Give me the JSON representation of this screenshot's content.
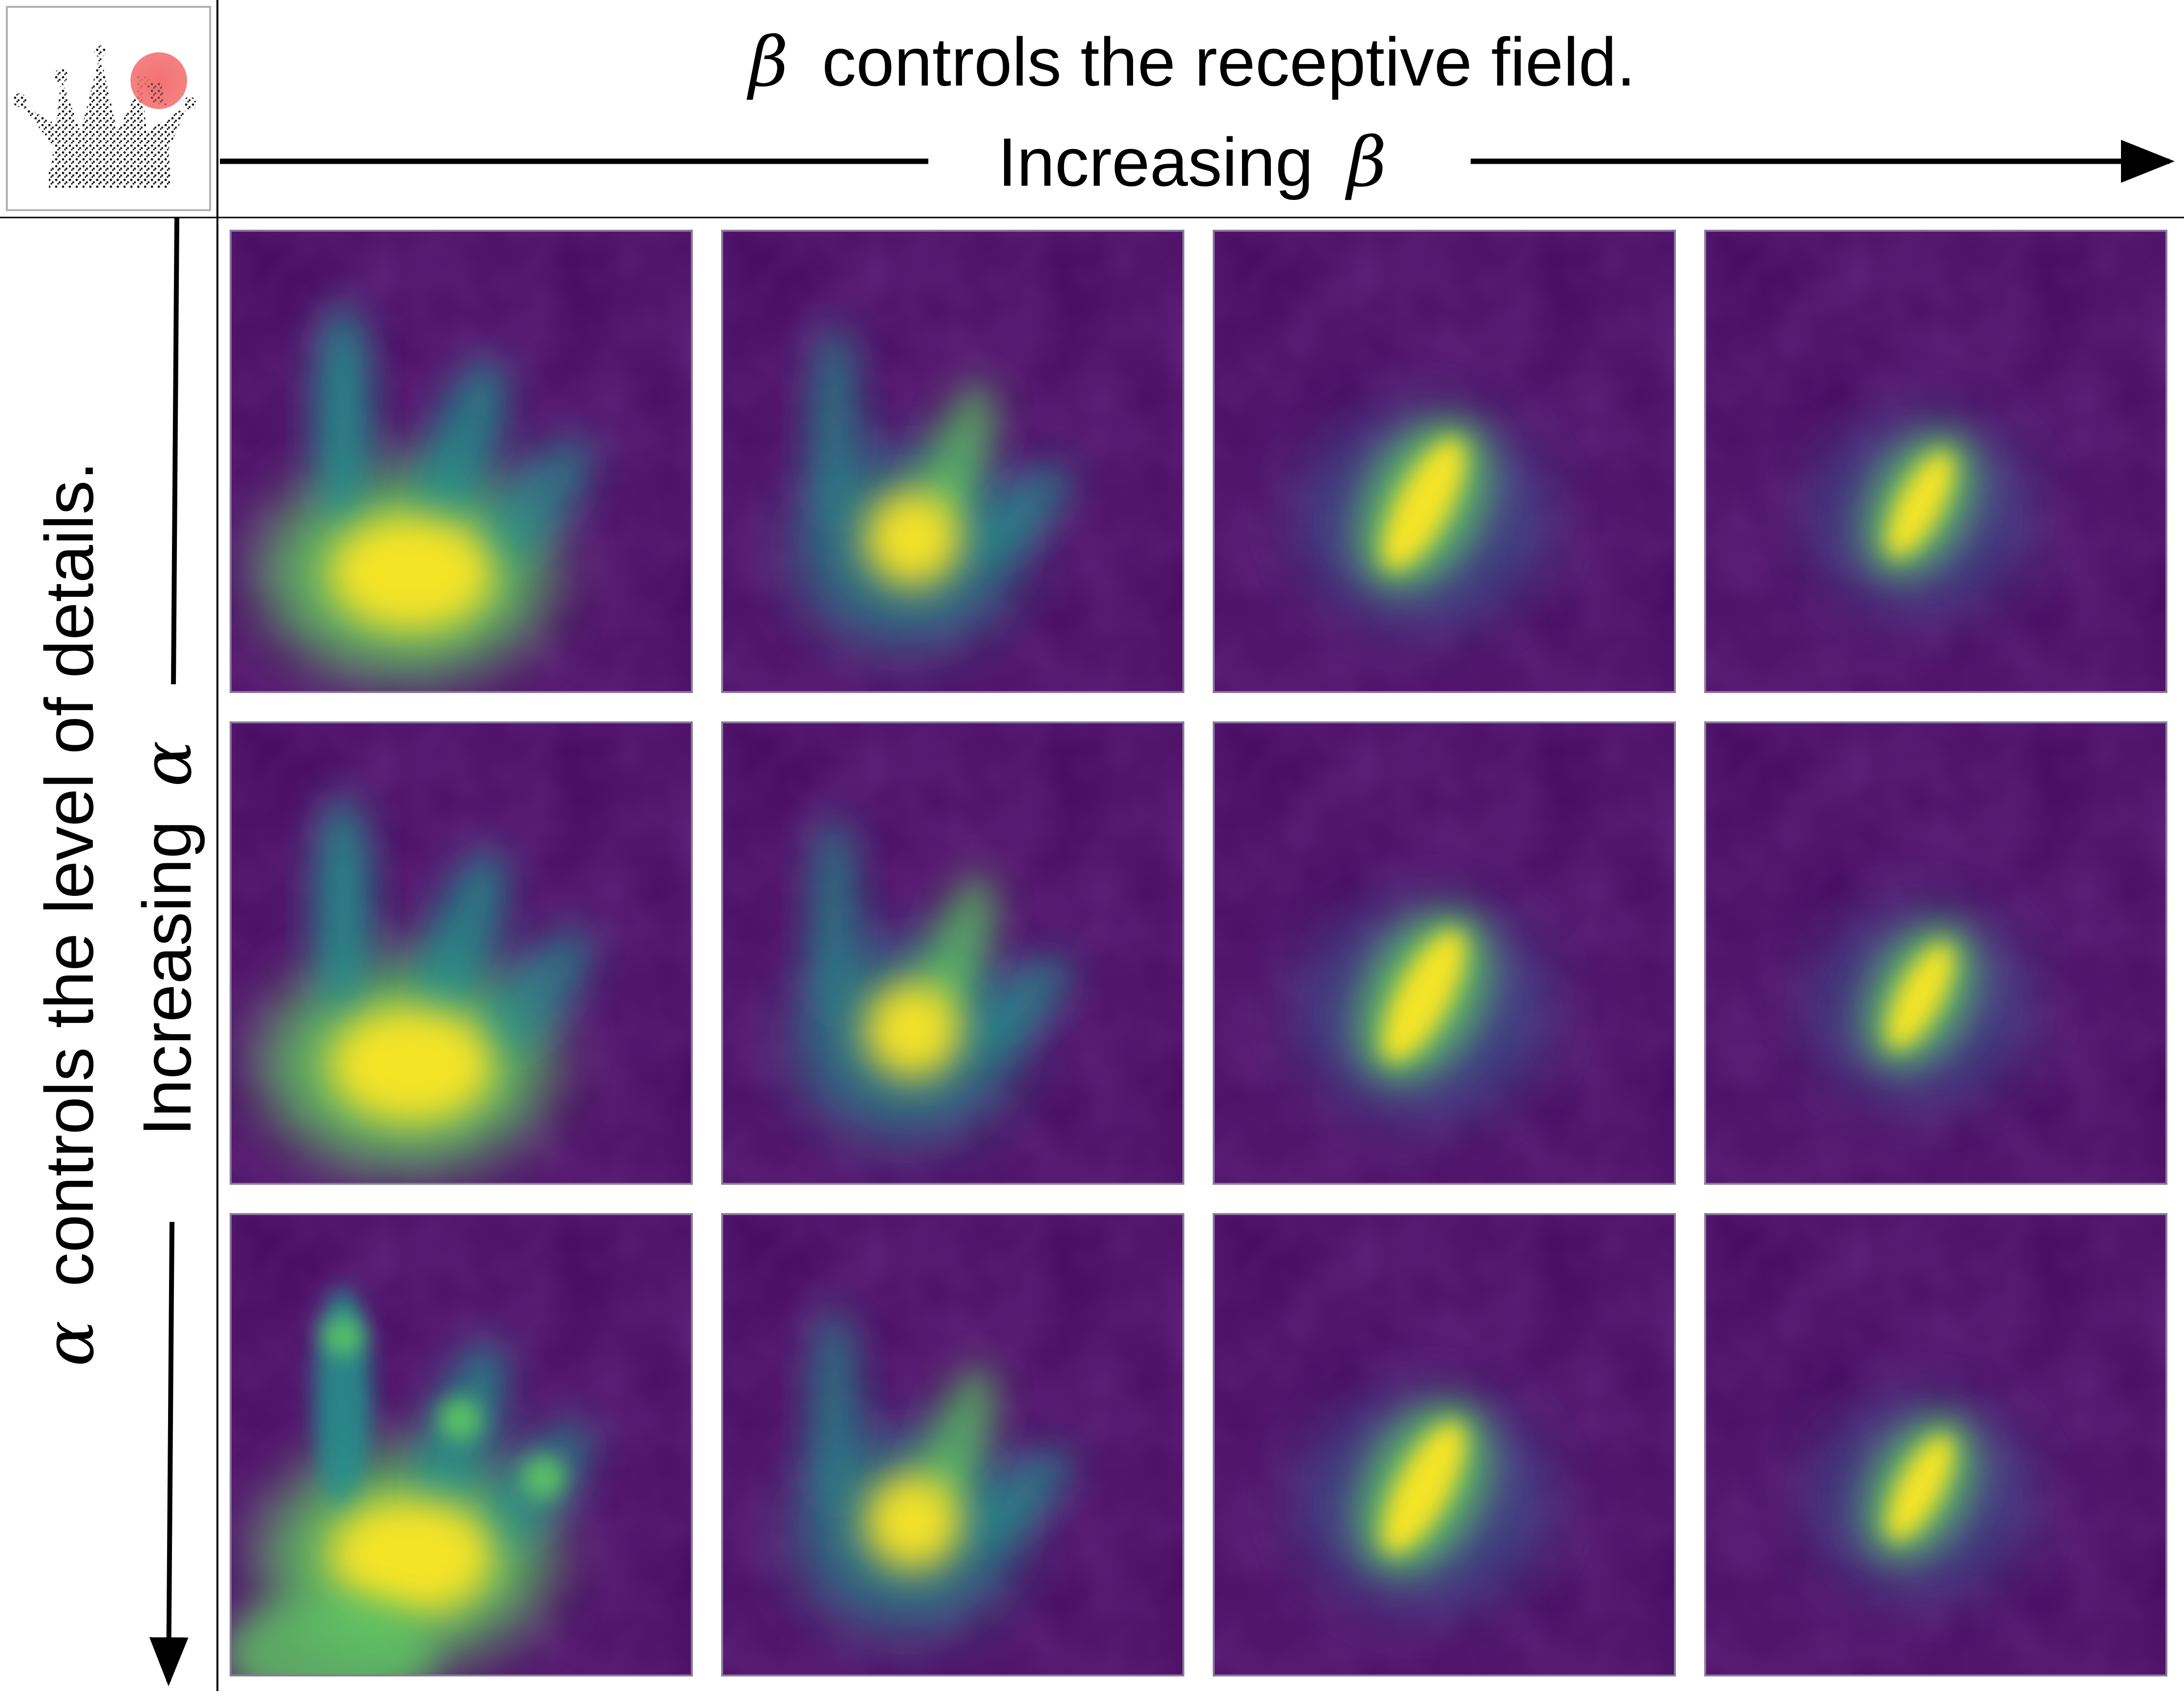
{
  "header": {
    "beta_symbol": "β",
    "beta_caption": "controls the receptive field.",
    "beta_increasing_label": "Increasing",
    "beta_increasing_symbol": "β"
  },
  "side": {
    "alpha_symbol": "α",
    "alpha_caption": "controls the level of details.",
    "alpha_increasing_label": "Increasing",
    "alpha_increasing_symbol": "α"
  },
  "thumbnail": {
    "subject": "crown point cloud",
    "highlight_color": "#f26b6b"
  },
  "grid": {
    "rows": 3,
    "columns": 4,
    "colormap": [
      "#440154",
      "#3b528b",
      "#21918c",
      "#5ec962",
      "#fde725"
    ]
  },
  "colors": {
    "background": "#ffffff",
    "text": "#000000",
    "panel_base": "#45085f",
    "panel_border": "#8a7a9a"
  }
}
